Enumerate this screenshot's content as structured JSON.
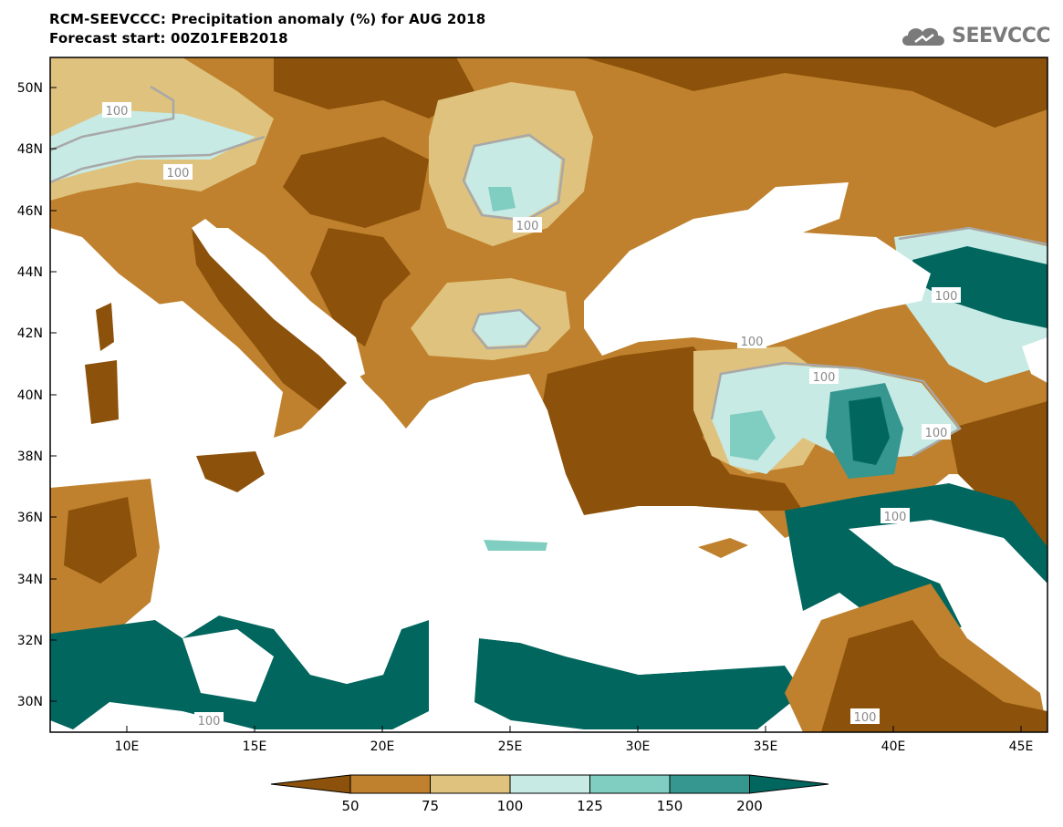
{
  "title": "RCM-SEEVCCC: Precipitation anomaly (%) for AUG 2018",
  "subtitle": "Forecast start: 00Z01FEB2018",
  "logo_text": "SEEVCCC",
  "axes": {
    "lat_labels": [
      "50N",
      "48N",
      "46N",
      "44N",
      "42N",
      "40N",
      "38N",
      "36N",
      "34N",
      "32N",
      "30N"
    ],
    "lon_labels": [
      "10E",
      "15E",
      "20E",
      "25E",
      "30E",
      "35E",
      "40E",
      "45E"
    ]
  },
  "contour_labels": [
    "100",
    "100",
    "100",
    "100",
    "100",
    "100",
    "100",
    "100",
    "100"
  ],
  "colorbar": {
    "labels": [
      "50",
      "75",
      "100",
      "125",
      "150",
      "200"
    ],
    "colors": [
      "#8c510a",
      "#bf812d",
      "#dfc27d",
      "#c7eae5",
      "#80cdc1",
      "#35978f",
      "#01665e"
    ]
  },
  "palette": {
    "below_50": "#8c510a",
    "50_75": "#bf812d",
    "75_100": "#dfc27d",
    "100_125": "#c7eae5",
    "125_150": "#80cdc1",
    "150_200": "#35978f",
    "above_200": "#01665e",
    "contour_100": "#b0b0b0"
  }
}
